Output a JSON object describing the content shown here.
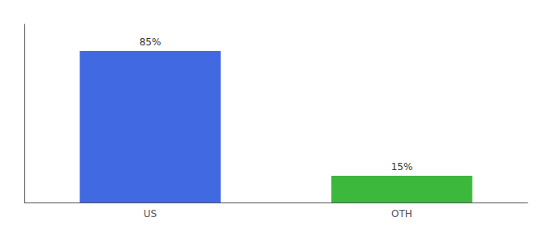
{
  "chart_data": {
    "type": "bar",
    "categories": [
      "US",
      "OTH"
    ],
    "values": [
      85,
      15
    ],
    "colors": [
      "#4169E1",
      "#3CB83C"
    ],
    "value_labels": [
      "85%",
      "15%"
    ],
    "data_labels": true,
    "ylim": [
      0,
      100
    ],
    "tick_labels": "x",
    "grid": false
  }
}
